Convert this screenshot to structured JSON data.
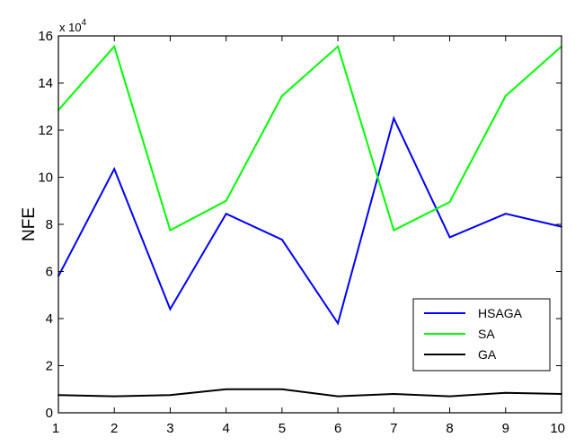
{
  "chart_data": {
    "type": "line",
    "title": "",
    "xlabel": "",
    "ylabel": "NFE",
    "y_multiplier_label": "x 10",
    "y_multiplier_exponent": "4",
    "xlim": [
      1,
      10
    ],
    "ylim": [
      0,
      160000
    ],
    "x": [
      1,
      2,
      3,
      4,
      5,
      6,
      7,
      8,
      9,
      10
    ],
    "x_ticks": [
      "1",
      "2",
      "3",
      "4",
      "5",
      "6",
      "7",
      "8",
      "9",
      "10"
    ],
    "y_ticks": [
      0,
      20000,
      40000,
      60000,
      80000,
      100000,
      120000,
      140000,
      160000
    ],
    "y_tick_labels": [
      "0",
      "2",
      "4",
      "6",
      "8",
      "10",
      "12",
      "14",
      "16"
    ],
    "grid": false,
    "legend_position": "bottom-right",
    "series": [
      {
        "name": "HSAGA",
        "color": "#0000ff",
        "values": [
          58000,
          103500,
          44000,
          84500,
          73500,
          38000,
          125000,
          74500,
          84500,
          79000
        ]
      },
      {
        "name": "SA",
        "color": "#00ff00",
        "values": [
          128500,
          155500,
          77500,
          90000,
          134500,
          155500,
          77500,
          89500,
          134500,
          155500
        ]
      },
      {
        "name": "GA",
        "color": "#000000",
        "values": [
          7500,
          7000,
          7500,
          10000,
          10000,
          7000,
          8000,
          7000,
          8500,
          8000
        ]
      }
    ]
  }
}
